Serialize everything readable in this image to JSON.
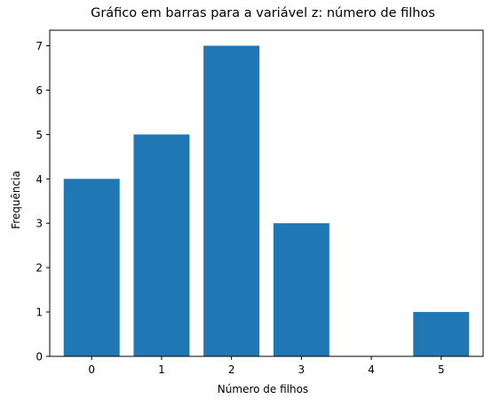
{
  "chart_data": {
    "type": "bar",
    "title": "Gráfico em barras para a variável z: número de filhos",
    "xlabel": "Número de filhos",
    "ylabel": "Frequência",
    "categories": [
      "0",
      "1",
      "2",
      "3",
      "4",
      "5"
    ],
    "values": [
      4,
      5,
      7,
      3,
      0,
      1
    ],
    "ylim": [
      0,
      7.35
    ],
    "yticks": [
      0,
      1,
      2,
      3,
      4,
      5,
      6,
      7
    ],
    "grid": false,
    "bar_color": "#1f77b4"
  }
}
